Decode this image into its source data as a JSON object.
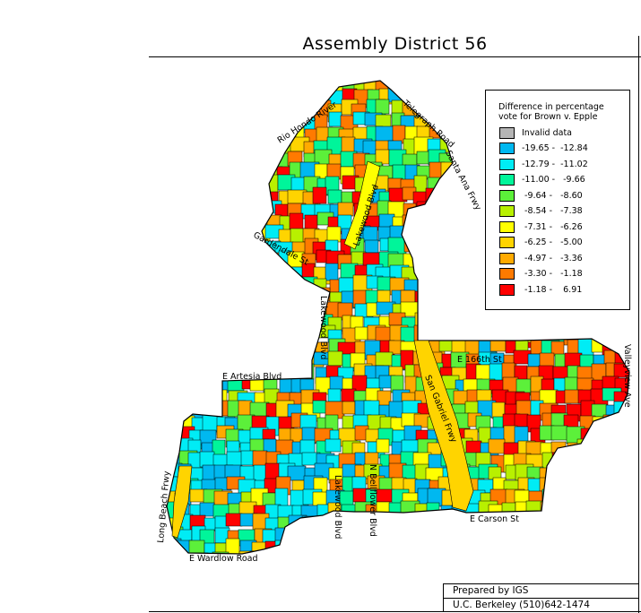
{
  "title": "Assembly District 56",
  "legend": {
    "title_line1": "Difference in percentage",
    "title_line2": "vote for Brown v. Epple",
    "items": [
      {
        "label": "Invalid data",
        "color": "#b5b5b5"
      },
      {
        "label": "-19.65 -  -12.84",
        "color": "#00b8f0"
      },
      {
        "label": "-12.79 -  -11.02",
        "color": "#00ecf5"
      },
      {
        "label": "-11.00 -   -9.66",
        "color": "#00f59a"
      },
      {
        "label": " -9.64 -   -8.60",
        "color": "#5cf03a"
      },
      {
        "label": " -8.54 -   -7.38",
        "color": "#b8f000"
      },
      {
        "label": " -7.31 -   -6.26",
        "color": "#ffff00"
      },
      {
        "label": " -6.25 -   -5.00",
        "color": "#ffd400"
      },
      {
        "label": " -4.97 -   -3.36",
        "color": "#ffaa00"
      },
      {
        "label": " -3.30 -   -1.18",
        "color": "#ff7a00"
      },
      {
        "label": " -1.18 -    6.91",
        "color": "#ff0000"
      }
    ]
  },
  "streets": {
    "rio_hondo": "Rio Hondo River",
    "telegraph": "Telegraph Road",
    "santa_ana": "Santa Ana Frwy",
    "lakewood_north": "Lakewood Blvd",
    "gardendale": "Gardendale St",
    "lakewood_mid": "Lakewood Blvd",
    "artesia": "E Artesia Blvd",
    "e166": "E 166th St",
    "valleyview": "Valleyview Ave",
    "san_gabriel": "San Gabriel Frwy",
    "long_beach": "Long Beach Frwy",
    "lakewood_south": "Lakewood Blvd",
    "bellflower": "N Bellflower Blvd",
    "carson": "E Carson St",
    "wardlow": "E Wardlow Road"
  },
  "credit": {
    "line1": "Prepared by IGS",
    "line2": "U.C. Berkeley (510)642-1474"
  }
}
